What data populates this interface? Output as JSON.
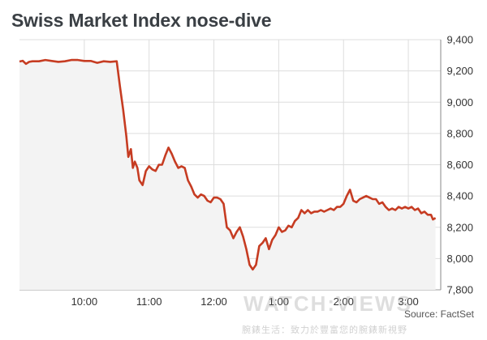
{
  "title": "Swiss Market Index nose-dive",
  "source": "Source: FactSet",
  "watermark": {
    "text": "WATCH:VIEWS",
    "subtext": "腕錶生活：致力於豐富您的腕錶新視野"
  },
  "colors": {
    "line": "#c63c22",
    "grid": "#dddddd",
    "area": "#f3f3f3"
  },
  "chart_data": {
    "type": "line",
    "title": "Swiss Market Index nose-dive",
    "ylim": [
      7800,
      9400
    ],
    "yticks": [
      7800,
      8000,
      8200,
      8400,
      8600,
      8800,
      9000,
      9200,
      9400
    ],
    "ytick_labels": [
      "7,800",
      "8,000",
      "8,200",
      "8,400",
      "8,600",
      "8,800",
      "9,000",
      "9,200",
      "9,400"
    ],
    "xlim": [
      9.0,
      15.5
    ],
    "xticks": [
      10.0,
      11.0,
      12.0,
      13.0,
      14.0,
      15.0
    ],
    "xtick_labels": [
      "10:00",
      "11:00",
      "12:00",
      "1:00",
      "2:00",
      "3:00"
    ],
    "grid": true,
    "y_axis_side": "right",
    "series": [
      {
        "x": [
          9.0,
          9.05,
          9.1,
          9.15,
          9.2,
          9.3,
          9.4,
          9.5,
          9.6,
          9.7,
          9.8,
          9.9,
          10.0,
          10.1,
          10.2,
          10.3,
          10.4,
          10.5,
          10.55,
          10.6,
          10.65,
          10.68,
          10.72,
          10.75,
          10.78,
          10.82,
          10.85,
          10.9,
          10.95,
          11.0,
          11.05,
          11.1,
          11.15,
          11.2,
          11.25,
          11.3,
          11.35,
          11.4,
          11.45,
          11.5,
          11.55,
          11.6,
          11.65,
          11.7,
          11.75,
          11.8,
          11.85,
          11.9,
          11.95,
          12.0,
          12.05,
          12.1,
          12.15,
          12.2,
          12.25,
          12.3,
          12.35,
          12.4,
          12.45,
          12.5,
          12.55,
          12.6,
          12.65,
          12.7,
          12.75,
          12.8,
          12.85,
          12.9,
          12.95,
          13.0,
          13.05,
          13.1,
          13.15,
          13.2,
          13.25,
          13.3,
          13.35,
          13.4,
          13.45,
          13.5,
          13.55,
          13.6,
          13.65,
          13.7,
          13.75,
          13.8,
          13.85,
          13.9,
          13.95,
          14.0,
          14.05,
          14.1,
          14.15,
          14.2,
          14.25,
          14.3,
          14.35,
          14.4,
          14.45,
          14.5,
          14.55,
          14.6,
          14.65,
          14.7,
          14.75,
          14.8,
          14.85,
          14.9,
          14.95,
          15.0,
          15.05,
          15.1,
          15.15,
          15.2,
          15.25,
          15.3,
          15.35,
          15.38,
          15.42
        ],
        "y": [
          9260,
          9265,
          9245,
          9258,
          9262,
          9262,
          9270,
          9264,
          9258,
          9262,
          9270,
          9270,
          9264,
          9264,
          9252,
          9262,
          9258,
          9262,
          9100,
          8950,
          8780,
          8650,
          8700,
          8580,
          8620,
          8580,
          8500,
          8470,
          8560,
          8590,
          8570,
          8560,
          8600,
          8600,
          8660,
          8710,
          8670,
          8620,
          8580,
          8590,
          8580,
          8500,
          8460,
          8410,
          8390,
          8410,
          8400,
          8370,
          8360,
          8390,
          8390,
          8380,
          8350,
          8200,
          8180,
          8130,
          8170,
          8200,
          8140,
          8060,
          7960,
          7930,
          7960,
          8080,
          8100,
          8130,
          8060,
          8120,
          8150,
          8200,
          8170,
          8180,
          8210,
          8200,
          8240,
          8260,
          8310,
          8290,
          8310,
          8290,
          8300,
          8300,
          8310,
          8300,
          8310,
          8320,
          8310,
          8330,
          8330,
          8350,
          8400,
          8440,
          8370,
          8360,
          8380,
          8390,
          8400,
          8390,
          8380,
          8380,
          8350,
          8360,
          8330,
          8310,
          8320,
          8310,
          8330,
          8320,
          8330,
          8320,
          8330,
          8310,
          8320,
          8290,
          8300,
          8280,
          8280,
          8250,
          8260
        ]
      }
    ]
  }
}
